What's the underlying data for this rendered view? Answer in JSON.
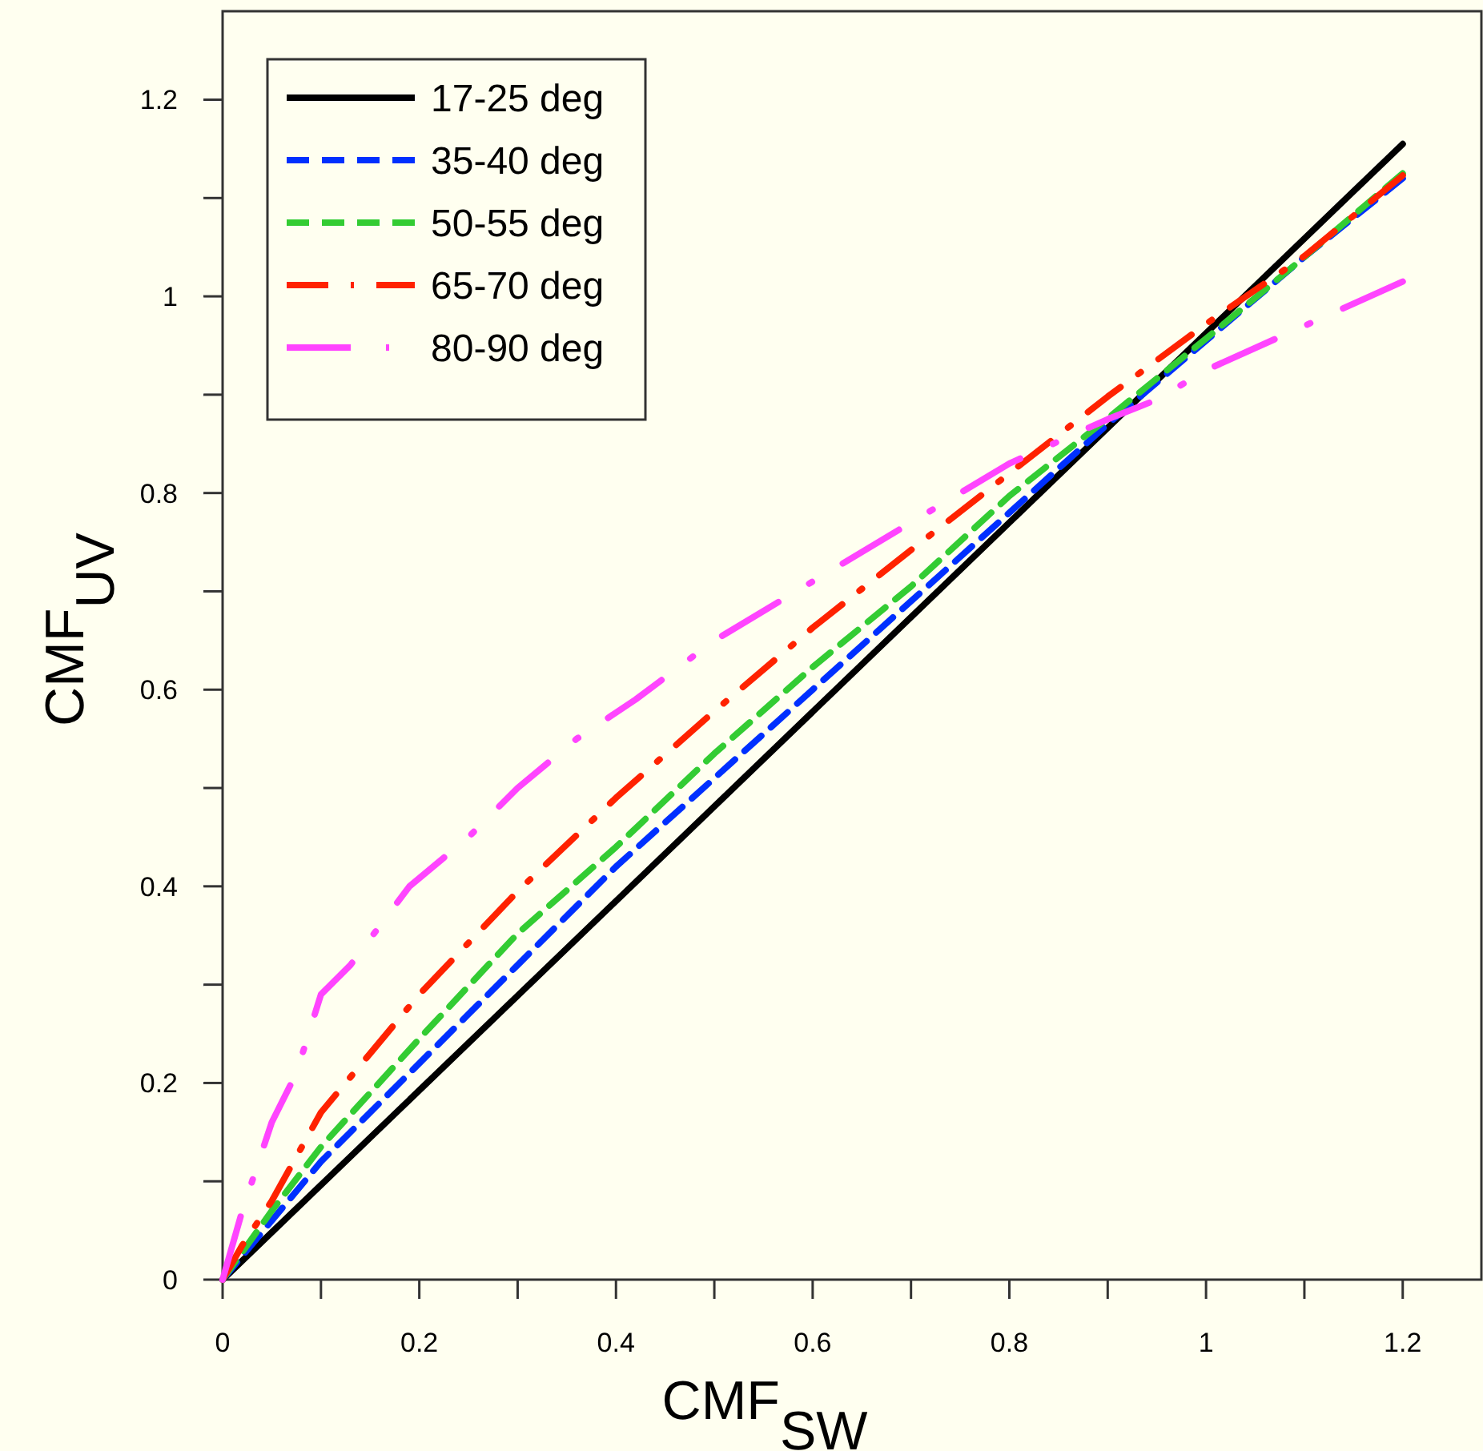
{
  "chart_data": {
    "type": "line",
    "xlabel": "CMF$_{SW}$",
    "ylabel": "CMF$_{UV}$",
    "xlim": [
      0,
      1.28
    ],
    "ylim": [
      0,
      1.29
    ],
    "xticks": [
      0,
      {
        "value": 0.1,
        "label": null
      },
      0.2,
      {
        "value": 0.3,
        "label": null
      },
      0.4,
      {
        "value": 0.5,
        "label": null
      },
      0.6,
      {
        "value": 0.7,
        "label": null
      },
      0.8,
      {
        "value": 0.9,
        "label": null
      },
      1,
      {
        "value": 1.1,
        "label": null
      },
      1.2
    ],
    "yticks": [
      0,
      {
        "value": 0.1,
        "label": null
      },
      0.2,
      {
        "value": 0.3,
        "label": null
      },
      0.4,
      {
        "value": 0.5,
        "label": null
      },
      0.6,
      {
        "value": 0.7,
        "label": null
      },
      0.8,
      {
        "value": 0.9,
        "label": null
      },
      1,
      {
        "value": 1.1,
        "label": null
      },
      1.2
    ],
    "grid": false,
    "legend": "top left",
    "marker": "none",
    "series": [
      {
        "name": "17-25 deg",
        "color": "#000000",
        "line_style": "solid",
        "x": [
          0,
          1.2
        ],
        "values": [
          0,
          1.155
        ]
      },
      {
        "name": "35-40 deg",
        "color": "#0030ff",
        "line_style": "dashed",
        "x": [
          0,
          0.1,
          0.2,
          0.3,
          0.4,
          0.5,
          0.6,
          0.7,
          0.8,
          0.9,
          1.0,
          1.1,
          1.2
        ],
        "values": [
          0,
          0.12,
          0.22,
          0.32,
          0.42,
          0.51,
          0.6,
          0.69,
          0.78,
          0.87,
          0.955,
          1.04,
          1.12
        ]
      },
      {
        "name": "50-55 deg",
        "color": "#33cc33",
        "line_style": "dashed",
        "x": [
          0,
          0.05,
          0.1,
          0.2,
          0.3,
          0.4,
          0.5,
          0.6,
          0.7,
          0.8,
          0.9,
          1.0,
          1.1,
          1.2
        ],
        "values": [
          0,
          0.07,
          0.135,
          0.245,
          0.352,
          0.44,
          0.535,
          0.623,
          0.705,
          0.797,
          0.876,
          0.957,
          1.04,
          1.125
        ]
      },
      {
        "name": "65-70 deg",
        "color": "#ff2200",
        "line_style": "dashdot",
        "x": [
          0,
          0.02,
          0.05,
          0.1,
          0.15,
          0.2,
          0.3,
          0.4,
          0.5,
          0.6,
          0.7,
          0.8,
          0.9,
          1.0,
          1.1,
          1.2
        ],
        "values": [
          0,
          0.035,
          0.08,
          0.17,
          0.23,
          0.29,
          0.395,
          0.49,
          0.578,
          0.663,
          0.742,
          0.82,
          0.898,
          0.972,
          1.041,
          1.123
        ]
      },
      {
        "name": "80-90 deg",
        "color": "#ff44ff",
        "line_style": "longdashdot",
        "x": [
          0,
          0.02,
          0.05,
          0.075,
          0.1,
          0.13,
          0.19,
          0.25,
          0.3,
          0.36,
          0.42,
          0.5,
          0.6,
          0.7,
          0.8,
          0.9,
          0.95,
          1.0,
          1.1,
          1.2
        ],
        "values": [
          0,
          0.07,
          0.16,
          0.21,
          0.29,
          0.32,
          0.4,
          0.45,
          0.5,
          0.55,
          0.59,
          0.65,
          0.71,
          0.77,
          0.83,
          0.875,
          0.895,
          0.925,
          0.97,
          1.015
        ]
      }
    ]
  }
}
